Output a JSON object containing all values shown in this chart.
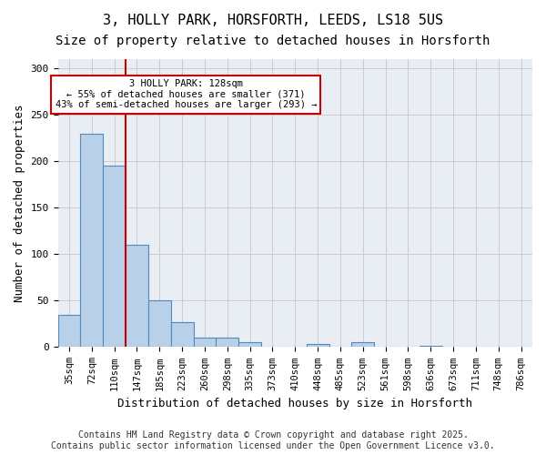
{
  "title_line1": "3, HOLLY PARK, HORSFORTH, LEEDS, LS18 5US",
  "title_line2": "Size of property relative to detached houses in Horsforth",
  "xlabel": "Distribution of detached houses by size in Horsforth",
  "ylabel": "Number of detached properties",
  "bins": [
    "35sqm",
    "72sqm",
    "110sqm",
    "147sqm",
    "185sqm",
    "223sqm",
    "260sqm",
    "298sqm",
    "335sqm",
    "373sqm",
    "410sqm",
    "448sqm",
    "485sqm",
    "523sqm",
    "561sqm",
    "598sqm",
    "636sqm",
    "673sqm",
    "711sqm",
    "748sqm",
    "786sqm"
  ],
  "values": [
    35,
    230,
    195,
    110,
    50,
    27,
    10,
    10,
    5,
    0,
    0,
    3,
    0,
    5,
    0,
    0,
    1,
    0,
    0,
    0,
    0
  ],
  "bar_color": "#b8d0e8",
  "bar_edge_color": "#5588bb",
  "property_line_x": 2.5,
  "annotation_text": "3 HOLLY PARK: 128sqm\n← 55% of detached houses are smaller (371)\n43% of semi-detached houses are larger (293) →",
  "annotation_box_color": "#ffffff",
  "annotation_box_edge_color": "#cc0000",
  "property_line_color": "#cc0000",
  "ylim": [
    0,
    310
  ],
  "yticks": [
    0,
    50,
    100,
    150,
    200,
    250,
    300
  ],
  "grid_color": "#cccccc",
  "background_color": "#e8eef4",
  "footer_text": "Contains HM Land Registry data © Crown copyright and database right 2025.\nContains public sector information licensed under the Open Government Licence v3.0.",
  "title_fontsize": 11,
  "subtitle_fontsize": 10,
  "tick_fontsize": 7.5,
  "label_fontsize": 9,
  "footer_fontsize": 7
}
